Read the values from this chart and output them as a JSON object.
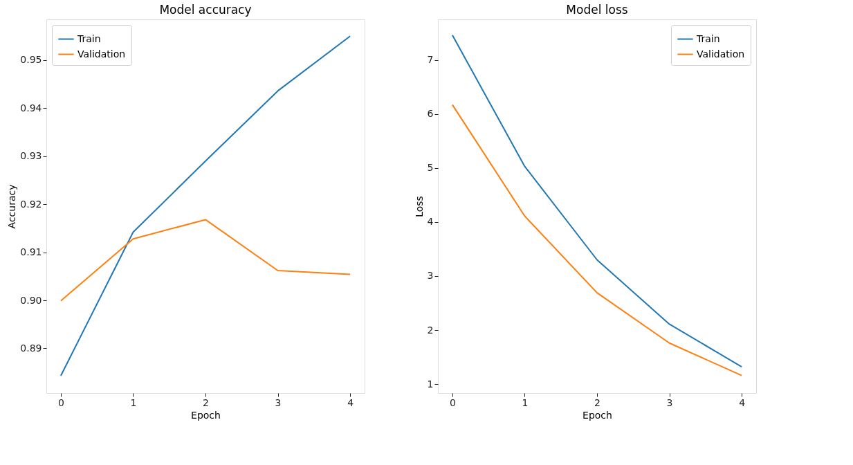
{
  "chart_data": [
    {
      "type": "line",
      "title": "Model accuracy",
      "xlabel": "Epoch",
      "ylabel": "Accuracy",
      "x": [
        0,
        1,
        2,
        3,
        4
      ],
      "xlim": [
        -0.2,
        4.2
      ],
      "xticks": [
        0,
        1,
        2,
        3,
        4
      ],
      "ylim": [
        0.8807,
        0.9585
      ],
      "yticks": [
        0.89,
        {
          "value": 0.9,
          "label": "0.90"
        },
        0.91,
        0.92,
        0.93,
        0.94,
        0.95
      ],
      "grid": false,
      "legend": "top left",
      "series": [
        {
          "name": "Train",
          "color": "#1f77b4",
          "values": [
            0.8843,
            0.9142,
            0.929,
            0.9436,
            0.955
          ]
        },
        {
          "name": "Validation",
          "color": "#ff7f0e",
          "values": [
            0.8999,
            0.9128,
            0.9168,
            0.9062,
            0.9054
          ]
        }
      ]
    },
    {
      "type": "line",
      "title": "Model loss",
      "xlabel": "Epoch",
      "ylabel": "Loss",
      "x": [
        0,
        1,
        2,
        3,
        4
      ],
      "xlim": [
        -0.2,
        4.2
      ],
      "xticks": [
        0,
        1,
        2,
        3,
        4
      ],
      "ylim": [
        0.835,
        7.75
      ],
      "yticks": [
        1,
        2,
        3,
        4,
        5,
        6,
        7
      ],
      "grid": false,
      "legend": "top right",
      "series": [
        {
          "name": "Train",
          "color": "#1f77b4",
          "values": [
            7.46,
            5.03,
            3.3,
            2.11,
            1.32
          ]
        },
        {
          "name": "Validation",
          "color": "#ff7f0e",
          "values": [
            6.17,
            4.11,
            2.69,
            1.76,
            1.16
          ]
        }
      ]
    }
  ]
}
